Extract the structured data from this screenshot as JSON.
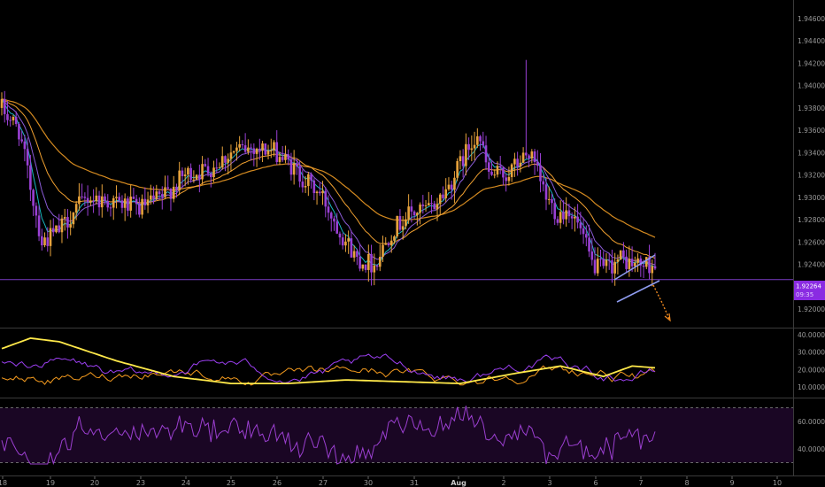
{
  "colors": {
    "background": "#000000",
    "up_candle": "#e8a33c",
    "down_candle": "#9a40d4",
    "ema_fast": "#1bb7c2",
    "ema_mid": "#8a5bd6",
    "ema_slow": "#f0a030",
    "ema_long": "#d48a20",
    "support_line": "#7a3cc6",
    "channel": "#8f9cf0",
    "adx": "#ffe94a",
    "di_plus": "#9b3ff0",
    "di_minus": "#f59b1e",
    "rsi": "#9b3fd0",
    "rsi_band": "#1a0624",
    "price_tag_bg": "#8a2be2",
    "price_tag_text": "#ffffff"
  },
  "price_axis": {
    "ticks": [
      "1.94600",
      "1.94400",
      "1.94200",
      "1.94000",
      "1.93800",
      "1.93600",
      "1.93400",
      "1.93200",
      "1.93000",
      "1.92800",
      "1.92600",
      "1.92400",
      "1.92000"
    ]
  },
  "price_tag": {
    "value": "1.92264",
    "countdown": "09:35"
  },
  "adx_axis": {
    "ticks": [
      "40.0000",
      "30.0000",
      "20.0000",
      "10.0000"
    ]
  },
  "rsi_axis": {
    "ticks": [
      "60.0000",
      "40.0000"
    ]
  },
  "time_axis": {
    "ticks": [
      "18",
      "19",
      "20",
      "23",
      "24",
      "25",
      "26",
      "27",
      "30",
      "31",
      "Aug",
      "2",
      "3",
      "6",
      "7",
      "8",
      "9",
      "10"
    ]
  },
  "chart_data": [
    {
      "type": "candlestick",
      "pane": "price",
      "ylim": [
        1.919,
        1.947
      ],
      "support_level": 1.92264,
      "series": [
        {
          "name": "",
          "approx_close_path": [
            [
              0,
              1.938
            ],
            [
              6,
              1.936
            ],
            [
              10,
              1.931
            ],
            [
              14,
              1.926
            ],
            [
              20,
              1.927
            ],
            [
              26,
              1.929
            ],
            [
              30,
              1.93
            ],
            [
              40,
              1.9295
            ],
            [
              48,
              1.929
            ],
            [
              56,
              1.93
            ],
            [
              64,
              1.932
            ],
            [
              72,
              1.9325
            ],
            [
              80,
              1.934
            ],
            [
              88,
              1.9345
            ],
            [
              96,
              1.934
            ],
            [
              104,
              1.932
            ],
            [
              112,
              1.93
            ],
            [
              118,
              1.927
            ],
            [
              124,
              1.9245
            ],
            [
              130,
              1.924
            ],
            [
              136,
              1.927
            ],
            [
              142,
              1.9285
            ],
            [
              150,
              1.929
            ],
            [
              156,
              1.931
            ],
            [
              162,
              1.934
            ],
            [
              166,
              1.936
            ],
            [
              170,
              1.932
            ],
            [
              176,
              1.932
            ],
            [
              180,
              1.933
            ],
            [
              184,
              1.934
            ],
            [
              190,
              1.93
            ],
            [
              194,
              1.9285
            ],
            [
              198,
              1.929
            ],
            [
              202,
              1.927
            ],
            [
              206,
              1.924
            ],
            [
              210,
              1.9235
            ],
            [
              216,
              1.9245
            ],
            [
              220,
              1.924
            ],
            [
              228,
              1.924
            ]
          ]
        }
      ]
    },
    {
      "type": "line",
      "pane": "adx",
      "ylim": [
        5,
        42
      ],
      "series": [
        {
          "name": "",
          "color_key": "adx"
        },
        {
          "name": "",
          "color_key": "di_plus"
        },
        {
          "name": "",
          "color_key": "di_minus"
        }
      ]
    },
    {
      "type": "line",
      "pane": "rsi",
      "ylim": [
        28,
        75
      ],
      "bands": [
        70,
        30
      ],
      "series": [
        {
          "name": "",
          "color_key": "rsi"
        }
      ]
    }
  ]
}
